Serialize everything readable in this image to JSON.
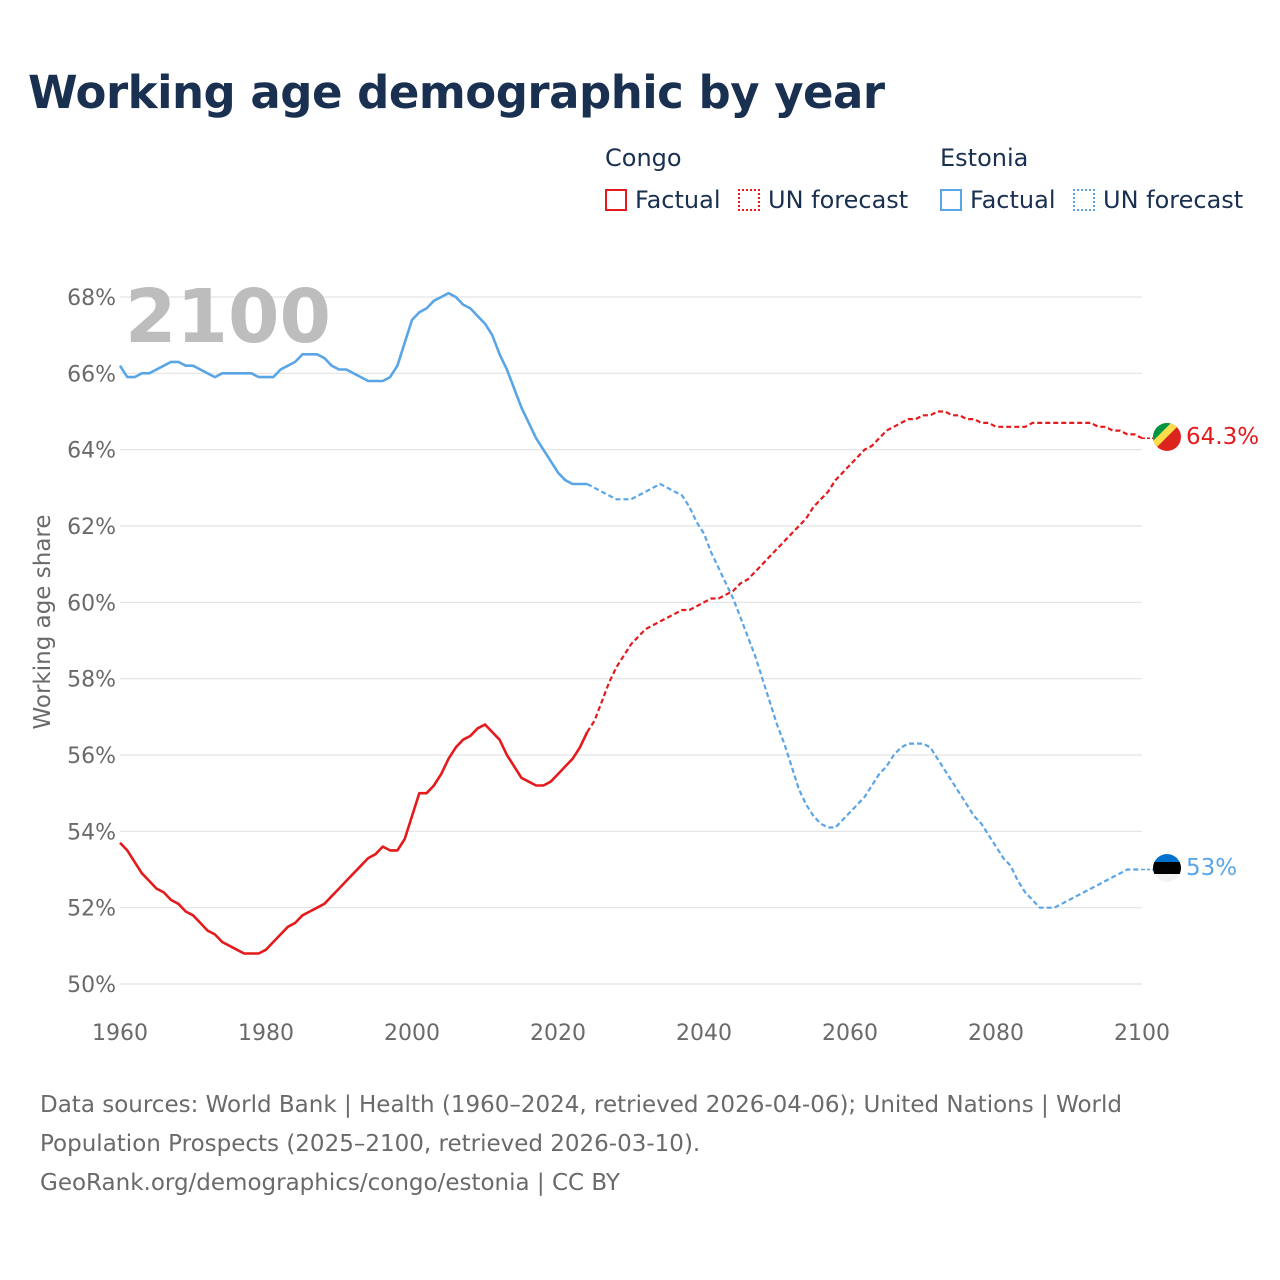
{
  "title": "Working age demographic by year",
  "year_badge": "2100",
  "legend": {
    "groups": [
      {
        "name": "Congo",
        "color": "#e41a1c",
        "factual_label": "Factual",
        "forecast_label": "UN forecast"
      },
      {
        "name": "Estonia",
        "color": "#5aa5e6",
        "factual_label": "Factual",
        "forecast_label": "UN forecast"
      }
    ]
  },
  "footer": {
    "sources": "Data sources: World Bank | Health (1960–2024, retrieved 2026-04-06); United Nations | World Population Prospects (2025–2100, retrieved 2026-03-10).",
    "credit": "GeoRank.org/demographics/congo/estonia | CC BY"
  },
  "chart_data": {
    "type": "line",
    "title": "Working age demographic by year",
    "ylabel": "Working age share",
    "xlabel": "",
    "xlim": [
      1960,
      2100
    ],
    "ylim": [
      50,
      68
    ],
    "x_ticks": [
      1960,
      1980,
      2000,
      2020,
      2040,
      2060,
      2080,
      2100
    ],
    "y_ticks": [
      50,
      52,
      54,
      56,
      58,
      60,
      62,
      64,
      66,
      68
    ],
    "y_tick_suffix": "%",
    "grid": true,
    "forecast_start": 2024,
    "series": [
      {
        "name": "Congo",
        "color": "#e41a1c",
        "end_label": "64.3%",
        "factual": {
          "x": [
            1960,
            1961,
            1962,
            1963,
            1964,
            1965,
            1966,
            1967,
            1968,
            1969,
            1970,
            1971,
            1972,
            1973,
            1974,
            1975,
            1976,
            1977,
            1978,
            1979,
            1980,
            1981,
            1982,
            1983,
            1984,
            1985,
            1986,
            1987,
            1988,
            1989,
            1990,
            1991,
            1992,
            1993,
            1994,
            1995,
            1996,
            1997,
            1998,
            1999,
            2000,
            2001,
            2002,
            2003,
            2004,
            2005,
            2006,
            2007,
            2008,
            2009,
            2010,
            2011,
            2012,
            2013,
            2014,
            2015,
            2016,
            2017,
            2018,
            2019,
            2020,
            2021,
            2022,
            2023,
            2024
          ],
          "y": [
            53.7,
            53.5,
            53.2,
            52.9,
            52.7,
            52.5,
            52.4,
            52.2,
            52.1,
            51.9,
            51.8,
            51.6,
            51.4,
            51.3,
            51.1,
            51.0,
            50.9,
            50.8,
            50.8,
            50.8,
            50.9,
            51.1,
            51.3,
            51.5,
            51.6,
            51.8,
            51.9,
            52.0,
            52.1,
            52.3,
            52.5,
            52.7,
            52.9,
            53.1,
            53.3,
            53.4,
            53.6,
            53.5,
            53.5,
            53.8,
            54.4,
            55.0,
            55.0,
            55.2,
            55.5,
            55.9,
            56.2,
            56.4,
            56.5,
            56.7,
            56.8,
            56.6,
            56.4,
            56.0,
            55.7,
            55.4,
            55.3,
            55.2,
            55.2,
            55.3,
            55.5,
            55.7,
            55.9,
            56.2,
            56.6
          ]
        },
        "forecast": {
          "x": [
            2024,
            2025,
            2026,
            2027,
            2028,
            2029,
            2030,
            2031,
            2032,
            2033,
            2034,
            2035,
            2036,
            2037,
            2038,
            2039,
            2040,
            2041,
            2042,
            2043,
            2044,
            2045,
            2046,
            2047,
            2048,
            2049,
            2050,
            2051,
            2052,
            2053,
            2054,
            2055,
            2056,
            2057,
            2058,
            2059,
            2060,
            2061,
            2062,
            2063,
            2064,
            2065,
            2066,
            2067,
            2068,
            2069,
            2070,
            2071,
            2072,
            2073,
            2074,
            2075,
            2076,
            2077,
            2078,
            2079,
            2080,
            2081,
            2082,
            2083,
            2084,
            2085,
            2086,
            2087,
            2088,
            2089,
            2090,
            2091,
            2092,
            2093,
            2094,
            2095,
            2096,
            2097,
            2098,
            2099,
            2100
          ],
          "y": [
            56.6,
            56.9,
            57.4,
            57.9,
            58.3,
            58.6,
            58.9,
            59.1,
            59.3,
            59.4,
            59.5,
            59.6,
            59.7,
            59.8,
            59.8,
            59.9,
            60.0,
            60.1,
            60.1,
            60.2,
            60.3,
            60.5,
            60.6,
            60.8,
            61.0,
            61.2,
            61.4,
            61.6,
            61.8,
            62.0,
            62.2,
            62.5,
            62.7,
            62.9,
            63.2,
            63.4,
            63.6,
            63.8,
            64.0,
            64.1,
            64.3,
            64.5,
            64.6,
            64.7,
            64.8,
            64.8,
            64.9,
            64.9,
            65.0,
            65.0,
            64.9,
            64.9,
            64.8,
            64.8,
            64.7,
            64.7,
            64.6,
            64.6,
            64.6,
            64.6,
            64.6,
            64.7,
            64.7,
            64.7,
            64.7,
            64.7,
            64.7,
            64.7,
            64.7,
            64.7,
            64.6,
            64.6,
            64.5,
            64.5,
            64.4,
            64.4,
            64.3
          ]
        }
      },
      {
        "name": "Estonia",
        "color": "#5aa5e6",
        "end_label": "53%",
        "factual": {
          "x": [
            1960,
            1961,
            1962,
            1963,
            1964,
            1965,
            1966,
            1967,
            1968,
            1969,
            1970,
            1971,
            1972,
            1973,
            1974,
            1975,
            1976,
            1977,
            1978,
            1979,
            1980,
            1981,
            1982,
            1983,
            1984,
            1985,
            1986,
            1987,
            1988,
            1989,
            1990,
            1991,
            1992,
            1993,
            1994,
            1995,
            1996,
            1997,
            1998,
            1999,
            2000,
            2001,
            2002,
            2003,
            2004,
            2005,
            2006,
            2007,
            2008,
            2009,
            2010,
            2011,
            2012,
            2013,
            2014,
            2015,
            2016,
            2017,
            2018,
            2019,
            2020,
            2021,
            2022,
            2023,
            2024
          ],
          "y": [
            66.2,
            65.9,
            65.9,
            66.0,
            66.0,
            66.1,
            66.2,
            66.3,
            66.3,
            66.2,
            66.2,
            66.1,
            66.0,
            65.9,
            66.0,
            66.0,
            66.0,
            66.0,
            66.0,
            65.9,
            65.9,
            65.9,
            66.1,
            66.2,
            66.3,
            66.5,
            66.5,
            66.5,
            66.4,
            66.2,
            66.1,
            66.1,
            66.0,
            65.9,
            65.8,
            65.8,
            65.8,
            65.9,
            66.2,
            66.8,
            67.4,
            67.6,
            67.7,
            67.9,
            68.0,
            68.1,
            68.0,
            67.8,
            67.7,
            67.5,
            67.3,
            67.0,
            66.5,
            66.1,
            65.6,
            65.1,
            64.7,
            64.3,
            64.0,
            63.7,
            63.4,
            63.2,
            63.1,
            63.1,
            63.1
          ]
        },
        "forecast": {
          "x": [
            2024,
            2025,
            2026,
            2027,
            2028,
            2029,
            2030,
            2031,
            2032,
            2033,
            2034,
            2035,
            2036,
            2037,
            2038,
            2039,
            2040,
            2041,
            2042,
            2043,
            2044,
            2045,
            2046,
            2047,
            2048,
            2049,
            2050,
            2051,
            2052,
            2053,
            2054,
            2055,
            2056,
            2057,
            2058,
            2059,
            2060,
            2061,
            2062,
            2063,
            2064,
            2065,
            2066,
            2067,
            2068,
            2069,
            2070,
            2071,
            2072,
            2073,
            2074,
            2075,
            2076,
            2077,
            2078,
            2079,
            2080,
            2081,
            2082,
            2083,
            2084,
            2085,
            2086,
            2087,
            2088,
            2089,
            2090,
            2091,
            2092,
            2093,
            2094,
            2095,
            2096,
            2097,
            2098,
            2099,
            2100
          ],
          "y": [
            63.1,
            63.0,
            62.9,
            62.8,
            62.7,
            62.7,
            62.7,
            62.8,
            62.9,
            63.0,
            63.1,
            63.0,
            62.9,
            62.8,
            62.5,
            62.1,
            61.8,
            61.3,
            60.9,
            60.5,
            60.1,
            59.6,
            59.1,
            58.6,
            58.0,
            57.4,
            56.8,
            56.3,
            55.7,
            55.1,
            54.7,
            54.4,
            54.2,
            54.1,
            54.1,
            54.3,
            54.5,
            54.7,
            54.9,
            55.2,
            55.5,
            55.7,
            56.0,
            56.2,
            56.3,
            56.3,
            56.3,
            56.2,
            55.9,
            55.6,
            55.3,
            55.0,
            54.7,
            54.4,
            54.2,
            53.9,
            53.6,
            53.3,
            53.1,
            52.7,
            52.4,
            52.2,
            52.0,
            52.0,
            52.0,
            52.1,
            52.2,
            52.3,
            52.4,
            52.5,
            52.6,
            52.7,
            52.8,
            52.9,
            53.0,
            53.0,
            53.0
          ]
        }
      }
    ]
  }
}
